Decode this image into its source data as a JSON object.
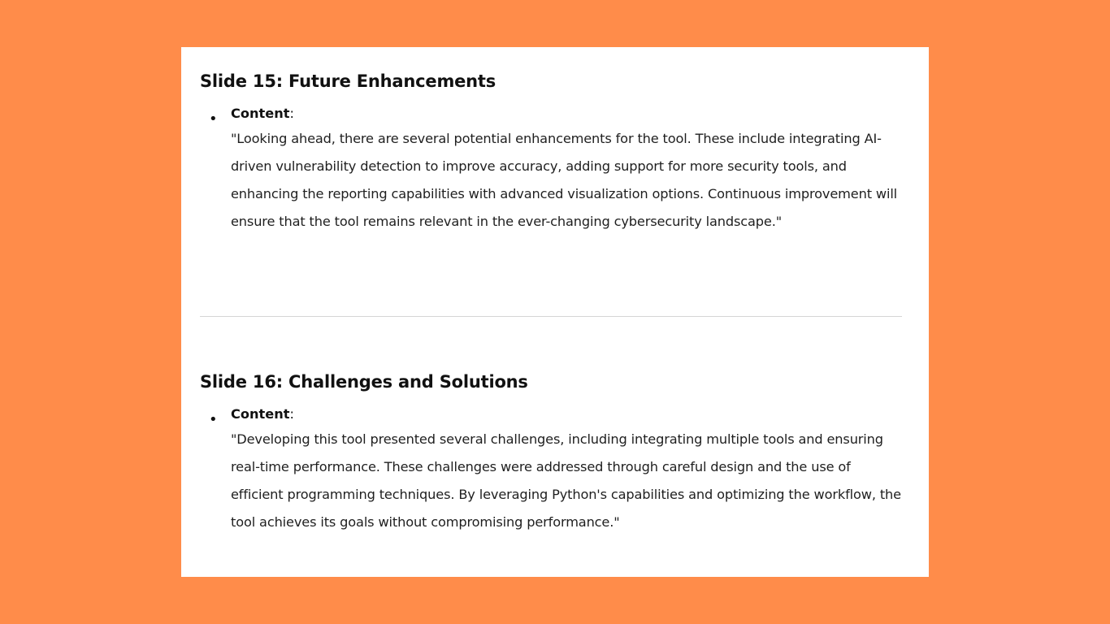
{
  "slides": [
    {
      "title": "Slide 15: Future Enhancements",
      "label": "Content",
      "colon": ":",
      "body": "\"Looking ahead, there are several potential enhancements for the tool. These include integrating AI-driven vulnerability detection to improve accuracy, adding support for more security tools, and enhancing the reporting capabilities with advanced visualization options. Continuous improvement will ensure that the tool remains relevant in the ever-changing cybersecurity landscape.\""
    },
    {
      "title": "Slide 16: Challenges and Solutions",
      "label": "Content",
      "colon": ":",
      "body": "\"Developing this tool presented several challenges, including integrating multiple tools and ensuring real-time performance. These challenges were addressed through careful design and the use of efficient programming techniques. By leveraging Python's capabilities and optimizing the workflow, the tool achieves its goals without compromising performance.\""
    }
  ],
  "bullet_glyph": "•",
  "colors": {
    "background": "#FF8C4A",
    "card": "#FFFFFF",
    "divider": "#D6D6D6"
  }
}
